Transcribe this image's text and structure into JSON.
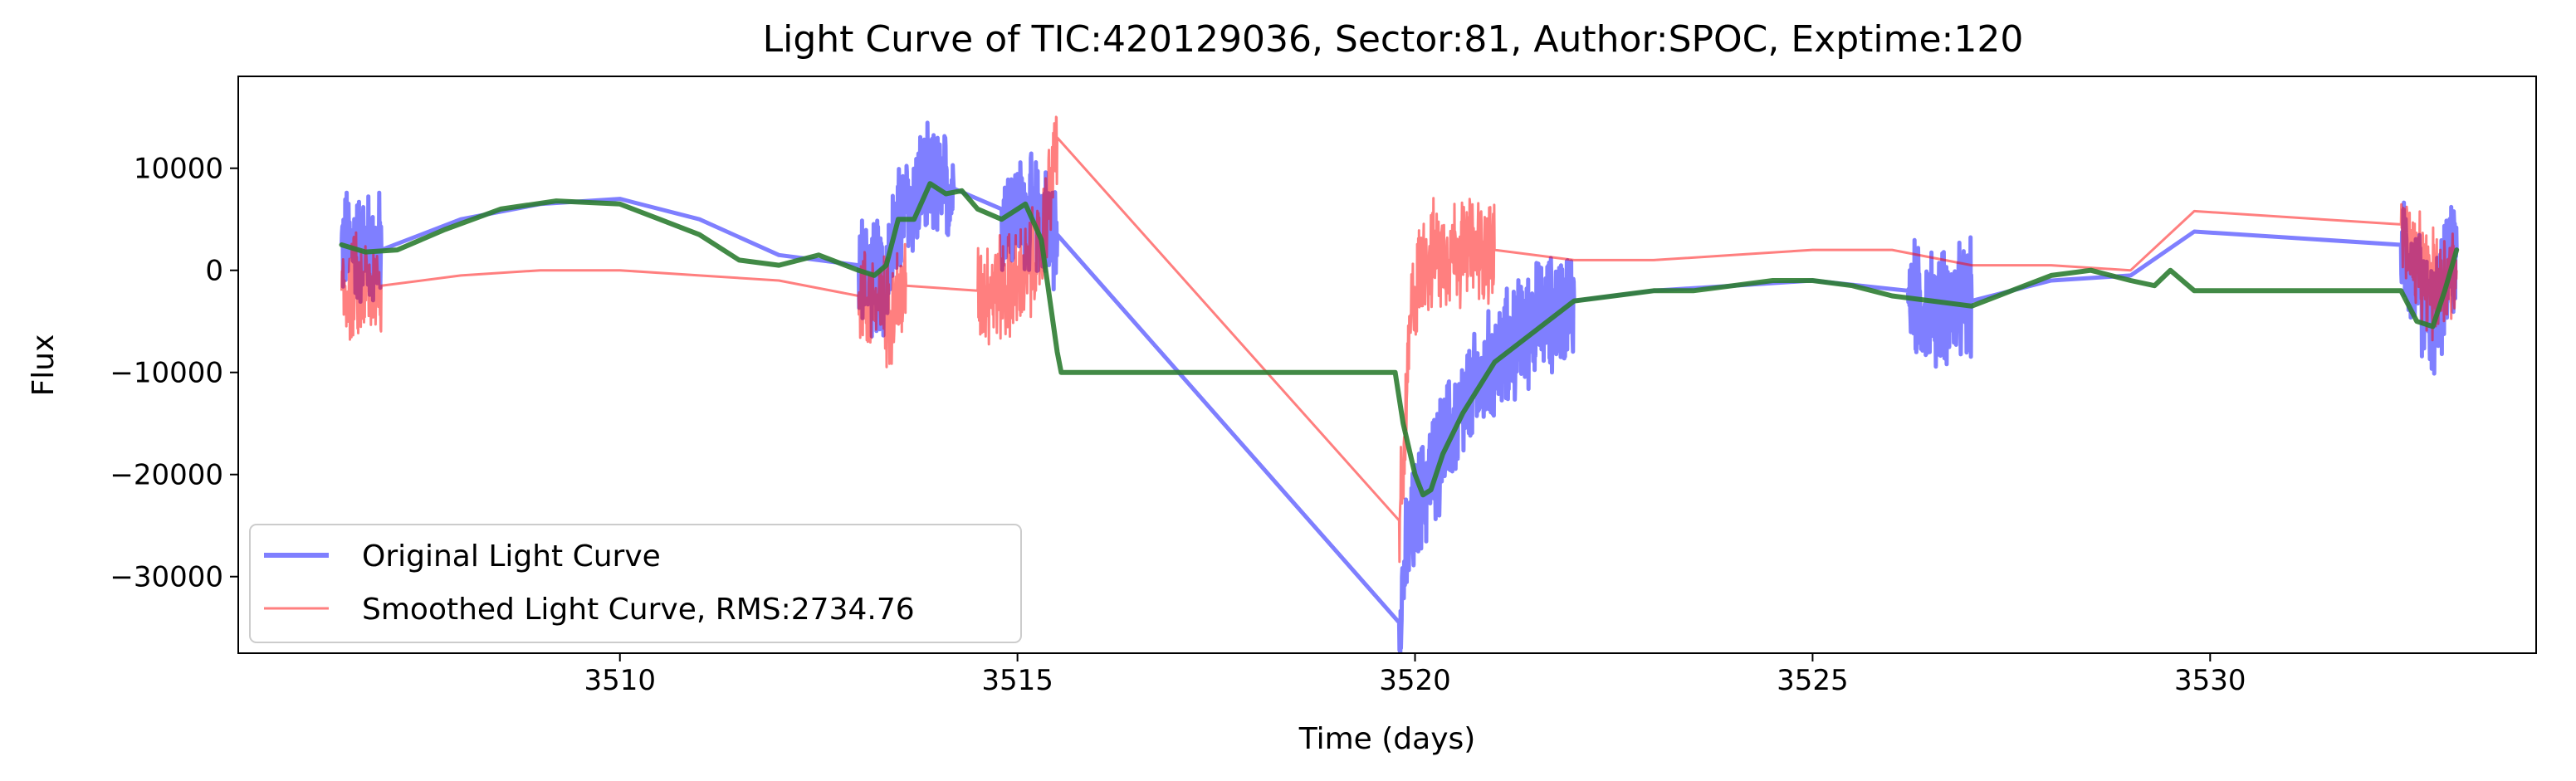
{
  "chart_data": {
    "type": "line",
    "title": "Light Curve of TIC:420129036, Sector:81, Author:SPOC, Exptime:120",
    "xlabel": "Time (days)",
    "ylabel": "Flux",
    "xlim": [
      3505.2,
      3534.1
    ],
    "ylim": [
      -37500,
      19000
    ],
    "xticks": [
      3510,
      3515,
      3520,
      3525,
      3530
    ],
    "yticks": [
      10000,
      0,
      -10000,
      -20000,
      -30000
    ],
    "ytick_labels": [
      "10000",
      "0",
      "−10000",
      "−20000",
      "−30000"
    ],
    "grid": false,
    "legend_position": "lower-left",
    "series": [
      {
        "name": "Original Light Curve",
        "color": "#0000ff",
        "opacity": 0.5,
        "style": "noisy-line",
        "noise": 4500,
        "x": [
          3506.5,
          3507.0,
          3508.0,
          3509.0,
          3510.0,
          3511.0,
          3512.0,
          3513.0,
          3513.3,
          3513.55,
          3513.8,
          3514.2,
          3514.8,
          3515.3,
          3515.5,
          3519.8,
          3519.85,
          3520.0,
          3520.2,
          3520.5,
          3521.0,
          3521.5,
          3522.0,
          3523.0,
          3524.0,
          3525.0,
          3526.2,
          3526.4,
          3527.0,
          3528.0,
          3529.0,
          3529.8,
          3532.4,
          3532.6,
          3532.8,
          3533.1
        ],
        "y": [
          2500,
          2000,
          5000,
          6500,
          7000,
          5000,
          1500,
          500,
          -1000,
          5500,
          8000,
          8000,
          6000,
          5000,
          3500,
          -34500,
          -30000,
          -24000,
          -20000,
          -15000,
          -9000,
          -5000,
          -3000,
          -2000,
          -1500,
          -1000,
          -2000,
          -4000,
          -3000,
          -1000,
          -500,
          3800,
          2500,
          -1500,
          -5000,
          2000
        ]
      },
      {
        "name": "Smoothed Light Curve, RMS:2734.76",
        "color": "#ff0000",
        "opacity": 0.5,
        "style": "noisy-line",
        "noise": 4200,
        "x": [
          3506.5,
          3507.0,
          3508.0,
          3509.0,
          3510.0,
          3511.0,
          3512.0,
          3513.0,
          3513.4,
          3513.6,
          3514.5,
          3515.0,
          3515.3,
          3515.5,
          3519.8,
          3519.85,
          3519.95,
          3520.1,
          3520.5,
          3521.0,
          3522.0,
          3523.0,
          3524.0,
          3525.0,
          3526.0,
          3527.0,
          3528.0,
          3529.0,
          3529.8,
          3532.4,
          3532.6,
          3532.8,
          3533.1
        ],
        "y": [
          -2000,
          -1500,
          -500,
          0,
          0,
          -500,
          -1000,
          -2500,
          -4000,
          -1500,
          -2000,
          -1500,
          2000,
          13000,
          -24500,
          -20000,
          -4000,
          1000,
          2000,
          2000,
          1000,
          1000,
          1500,
          2000,
          2000,
          500,
          500,
          0,
          5800,
          4500,
          0,
          -1500,
          0
        ]
      },
      {
        "name": "",
        "color": "#2e7d32",
        "opacity": 0.9,
        "style": "smooth-line",
        "noise": 0,
        "x": [
          3506.5,
          3506.8,
          3507.2,
          3507.8,
          3508.5,
          3509.2,
          3510.0,
          3510.5,
          3511.0,
          3511.5,
          3512.0,
          3512.5,
          3513.0,
          3513.2,
          3513.35,
          3513.5,
          3513.7,
          3513.9,
          3514.1,
          3514.3,
          3514.5,
          3514.8,
          3515.1,
          3515.3,
          3515.5,
          3515.55,
          3519.75,
          3519.85,
          3520.0,
          3520.1,
          3520.2,
          3520.35,
          3520.6,
          3521.0,
          3521.5,
          3522.0,
          3522.5,
          3523.0,
          3523.5,
          3524.0,
          3524.5,
          3525.0,
          3525.5,
          3526.0,
          3526.5,
          3527.0,
          3527.5,
          3528.0,
          3528.5,
          3529.0,
          3529.3,
          3529.5,
          3529.8,
          3532.4,
          3532.6,
          3532.8,
          3532.95,
          3533.1
        ],
        "y": [
          2500,
          1800,
          2000,
          4000,
          6000,
          6800,
          6500,
          5000,
          3500,
          1000,
          500,
          1500,
          0,
          -500,
          500,
          5000,
          5000,
          8500,
          7500,
          7800,
          6000,
          5000,
          6500,
          3000,
          -8000,
          -10000,
          -10000,
          -15000,
          -20000,
          -22000,
          -21500,
          -18000,
          -14000,
          -9000,
          -6000,
          -3000,
          -2500,
          -2000,
          -2000,
          -1500,
          -1000,
          -1000,
          -1500,
          -2500,
          -3000,
          -3500,
          -2000,
          -500,
          0,
          -1000,
          -1500,
          0,
          -2000,
          -2000,
          -5000,
          -5500,
          -2000,
          2000
        ]
      }
    ],
    "legend": [
      {
        "label": "Original Light Curve",
        "color": "#0000ff",
        "opacity": 0.5,
        "width": 6
      },
      {
        "label": "Smoothed Light Curve, RMS:2734.76",
        "color": "#ff0000",
        "opacity": 0.5,
        "width": 3
      }
    ]
  }
}
